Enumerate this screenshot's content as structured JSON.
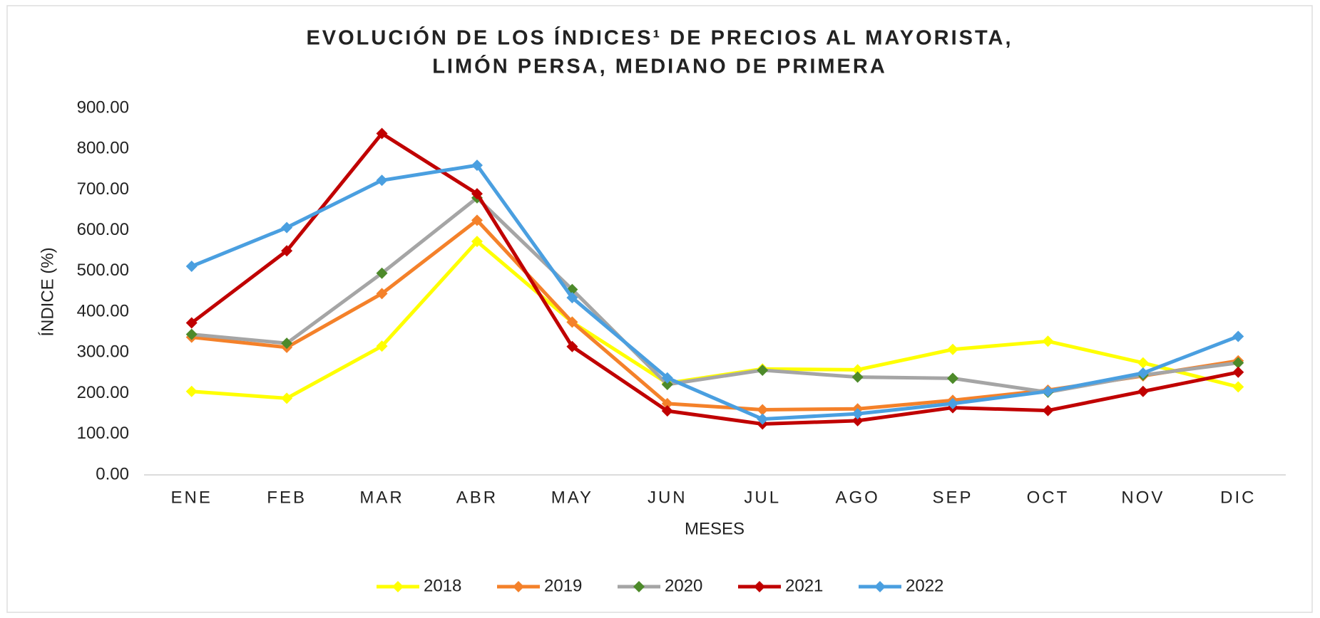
{
  "chart_data": {
    "type": "line",
    "title": [
      "EVOLUCIÓN DE LOS ÍNDICES¹ DE PRECIOS AL MAYORISTA,",
      "LIMÓN PERSA, MEDIANO DE PRIMERA"
    ],
    "xlabel": "MESES",
    "ylabel": "ÍNDICE (%)",
    "categories": [
      "ENE",
      "FEB",
      "MAR",
      "ABR",
      "MAY",
      "JUN",
      "JUL",
      "AGO",
      "SEP",
      "OCT",
      "NOV",
      "DIC"
    ],
    "series": [
      {
        "name": "2018",
        "color": "#ffff00",
        "marker_color": "#ffff00",
        "values": [
          205,
          188,
          316,
          573,
          375,
          225,
          260,
          258,
          308,
          328,
          275,
          216
        ]
      },
      {
        "name": "2019",
        "color": "#f4812a",
        "marker_color": "#f4812a",
        "values": [
          338,
          313,
          445,
          625,
          375,
          175,
          160,
          162,
          183,
          208,
          243,
          280
        ]
      },
      {
        "name": "2020",
        "color": "#a5a5a5",
        "marker_color": "#4d8a2a",
        "values": [
          345,
          323,
          495,
          680,
          455,
          222,
          257,
          240,
          237,
          203,
          245,
          275
        ]
      },
      {
        "name": "2021",
        "color": "#c00000",
        "marker_color": "#c00000",
        "values": [
          373,
          550,
          838,
          690,
          315,
          157,
          125,
          133,
          165,
          158,
          205,
          252
        ]
      },
      {
        "name": "2022",
        "color": "#4a9fe0",
        "marker_color": "#4a9fe0",
        "values": [
          512,
          607,
          723,
          760,
          435,
          238,
          137,
          150,
          175,
          205,
          250,
          340
        ]
      }
    ],
    "ylim": [
      0,
      900
    ],
    "yticks": [
      {
        "value": 0,
        "label": "0.00"
      },
      {
        "value": 100,
        "label": "100.00"
      },
      {
        "value": 200,
        "label": "200.00"
      },
      {
        "value": 300,
        "label": "300.00"
      },
      {
        "value": 400,
        "label": "400.00"
      },
      {
        "value": 500,
        "label": "500.00"
      },
      {
        "value": 600,
        "label": "600.00"
      },
      {
        "value": 700,
        "label": "700.00"
      },
      {
        "value": 800,
        "label": "800.00"
      },
      {
        "value": 900,
        "label": "900.00"
      }
    ],
    "grid": false,
    "legend": "bottom"
  }
}
